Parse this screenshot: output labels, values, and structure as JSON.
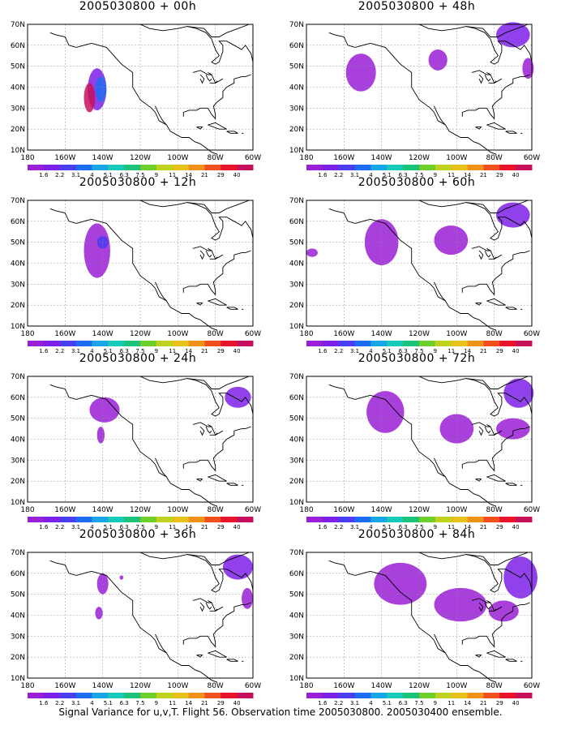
{
  "panels": [
    {
      "title": "2005030800 + 00h"
    },
    {
      "title": "2005030800 + 48h"
    },
    {
      "title": "2005030800 + 12h"
    },
    {
      "title": "2005030800 + 60h"
    },
    {
      "title": "2005030800 + 24h"
    },
    {
      "title": "2005030800 + 72h"
    },
    {
      "title": "2005030800 + 36h"
    },
    {
      "title": "2005030800 + 84h"
    }
  ],
  "lat_labels": [
    "70N",
    "60N",
    "50N",
    "40N",
    "30N",
    "20N",
    "10N"
  ],
  "lon_labels": [
    "180",
    "160W",
    "140W",
    "120W",
    "100W",
    "80W",
    "60W"
  ],
  "colorbar": {
    "labels": [
      "1.6",
      "2.2",
      "3.1",
      "4",
      "5.1",
      "6.3",
      "7.5",
      "9",
      "11",
      "14",
      "21",
      "29",
      "40"
    ],
    "colors": [
      "#9b1fd6",
      "#7c20e8",
      "#4a3cf0",
      "#1e6cf2",
      "#19a6e6",
      "#17c9b8",
      "#1ec37a",
      "#6fcf2a",
      "#bfd21e",
      "#e8c21a",
      "#f0921a",
      "#f0501e",
      "#e8122a",
      "#c8105a"
    ]
  },
  "caption": "Signal Variance for u,v,T. Flight 56. Observation time 2005030800. 2005030400 ensemble."
}
